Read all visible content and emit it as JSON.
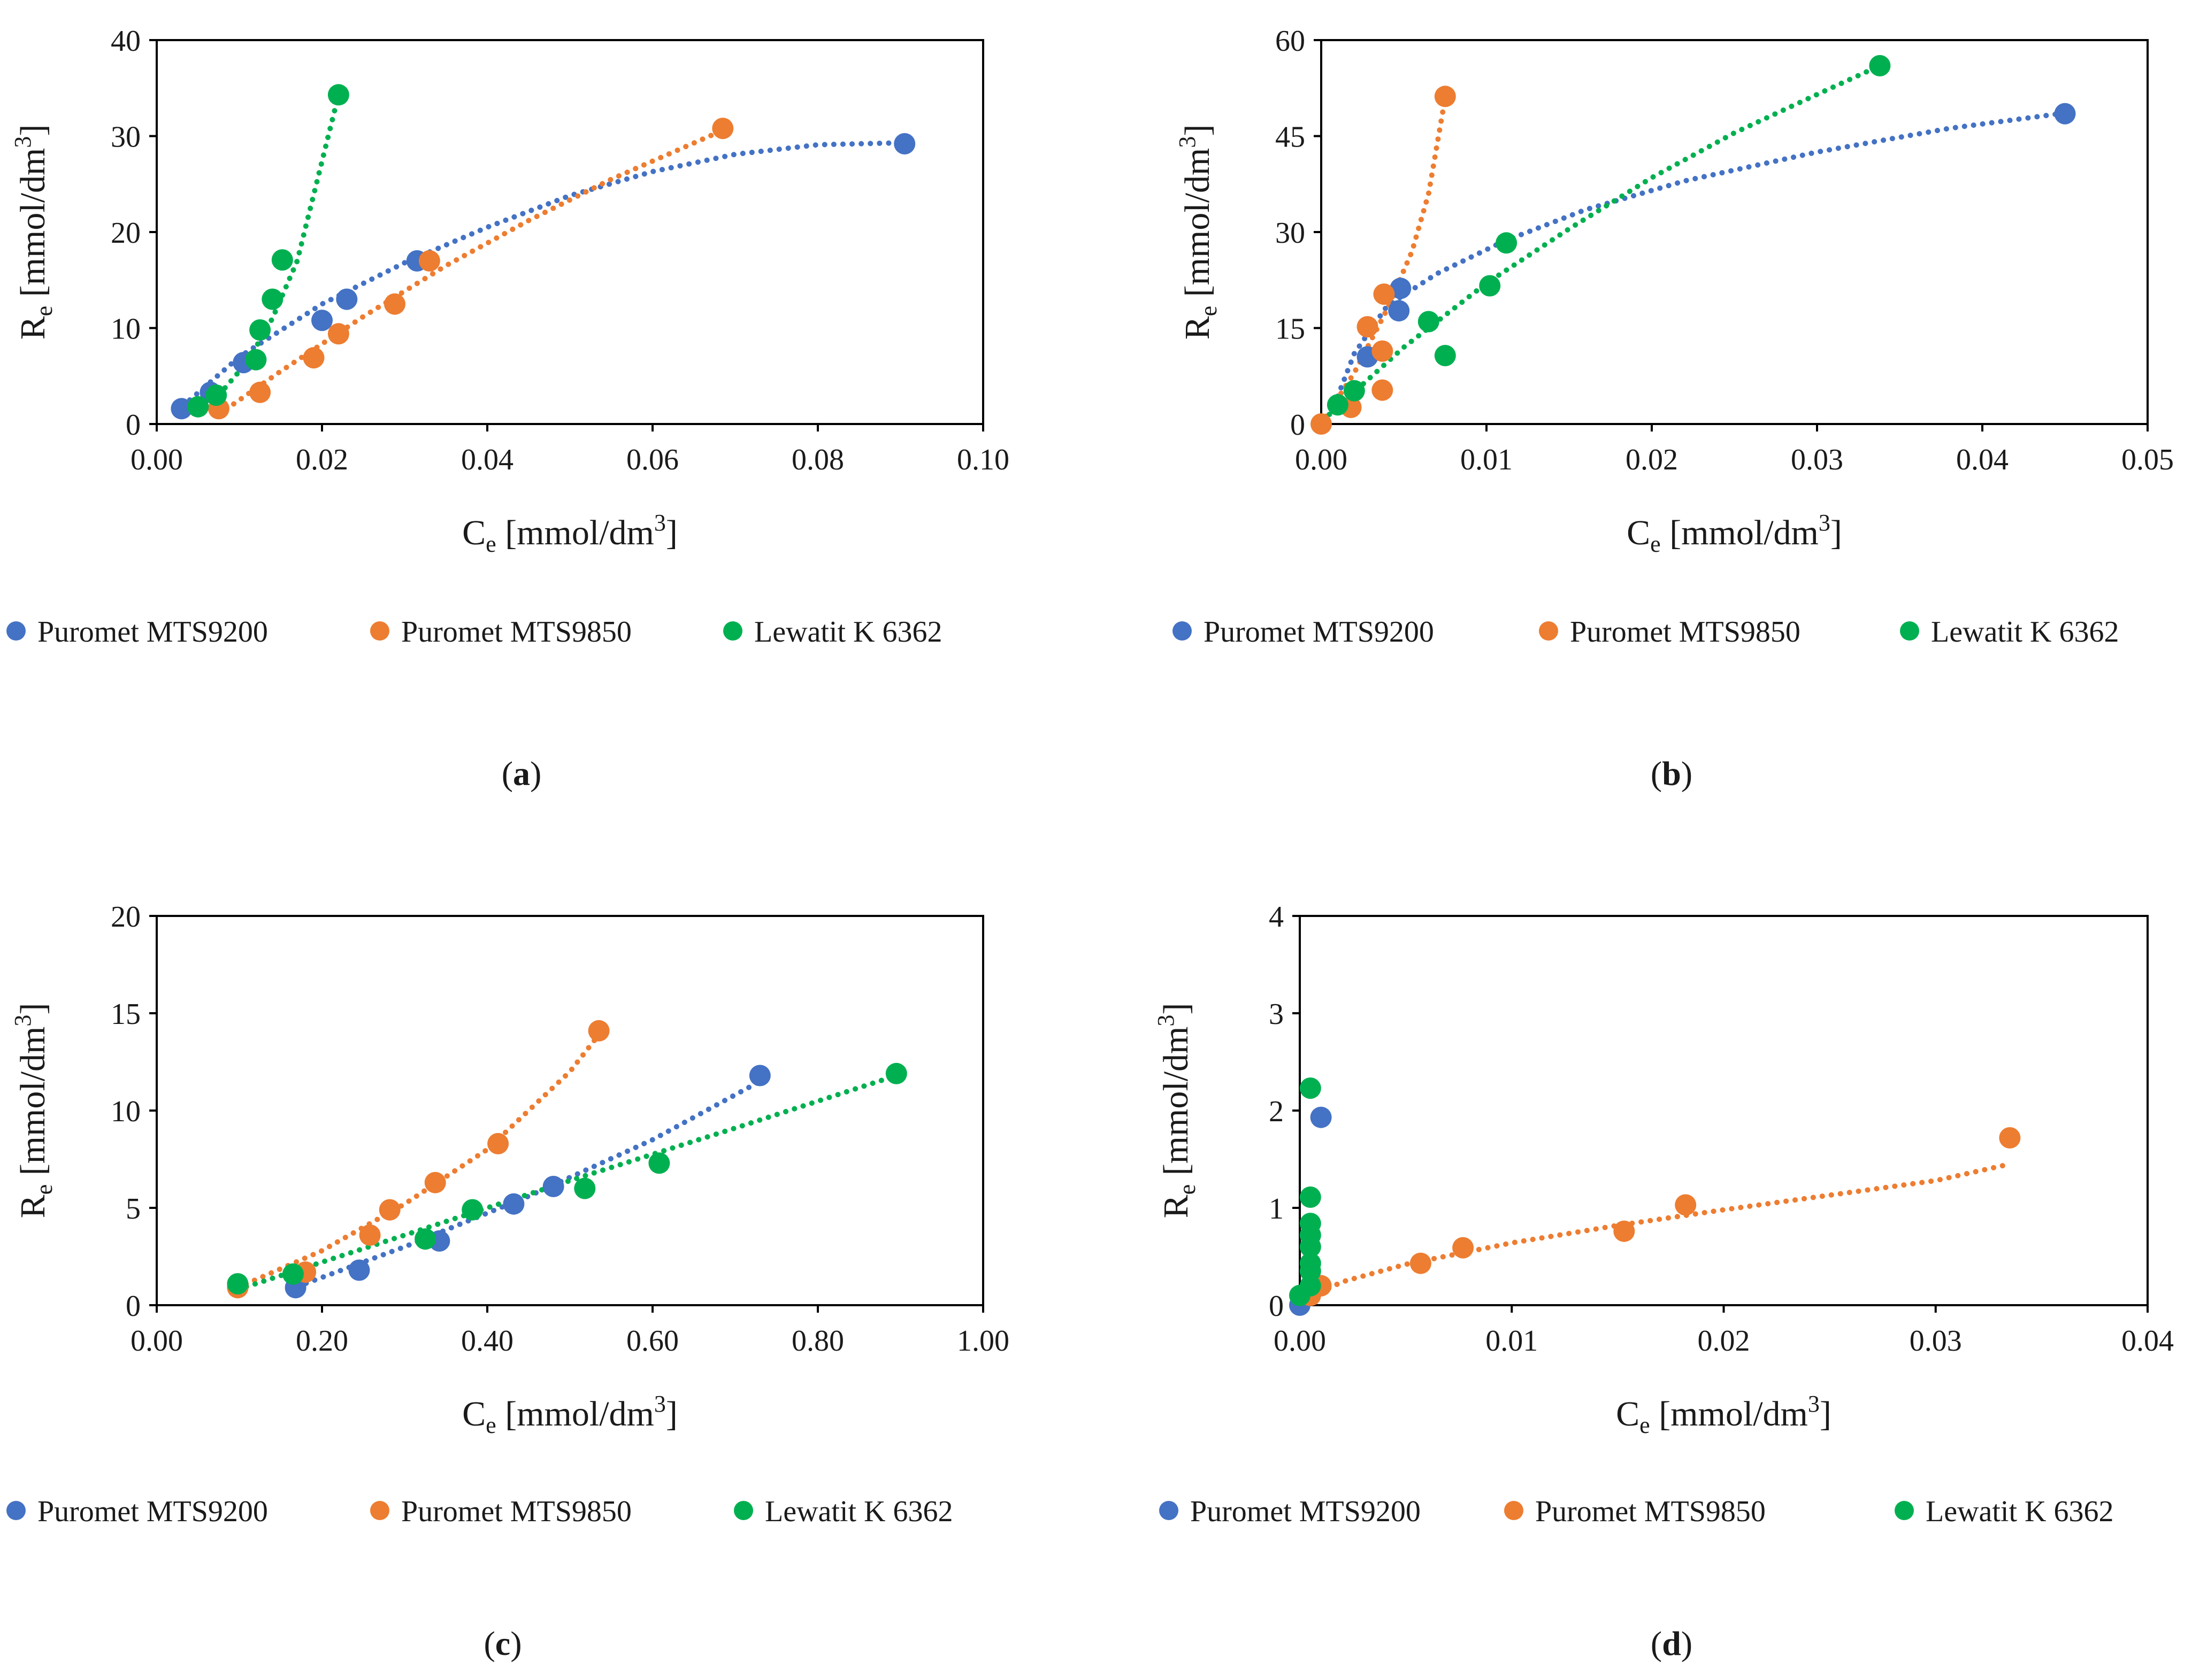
{
  "figure": {
    "colors": {
      "blue": "#4472C4",
      "orange": "#ED7D31",
      "green": "#00B050"
    },
    "ylabel_main": "R",
    "ylabel_sub": "e",
    "ylabel_unit": " [mmol/dm",
    "ylabel_sup": "3",
    "ylabel_close": "]",
    "xlabel_main": "C",
    "xlabel_sub": "e",
    "xlabel_unit": " [mmol/dm",
    "xlabel_sup": "3",
    "xlabel_close": "]"
  },
  "chart_data": [
    {
      "type": "scatter",
      "panel_label": "a",
      "xlabel": "Ce [mmol/dm3]",
      "ylabel": "Re [mmol/dm3]",
      "xlim": [
        0,
        0.1
      ],
      "ylim": [
        0,
        40
      ],
      "xticks": [
        "0.00",
        "0.02",
        "0.04",
        "0.06",
        "0.08",
        "0.10"
      ],
      "yticks": [
        "0",
        "10",
        "20",
        "30",
        "40"
      ],
      "grid": false,
      "legend": "bottom",
      "series": [
        {
          "name": "Puromet MTS9200",
          "color": "blue",
          "x": [
            0.003,
            0.0065,
            0.0105,
            0.02,
            0.023,
            0.0315,
            0.0905
          ],
          "y": [
            1.6,
            3.3,
            6.4,
            10.8,
            13.0,
            17.0,
            29.2
          ],
          "trend": {
            "x": [
              0.004,
              0.01,
              0.02,
              0.03,
              0.04,
              0.05,
              0.06,
              0.07,
              0.08,
              0.09
            ],
            "y": [
              2.5,
              7.0,
              12.5,
              16.8,
              20.5,
              23.8,
              26.3,
              28.1,
              29.1,
              29.3
            ]
          }
        },
        {
          "name": "Puromet MTS9850",
          "color": "orange",
          "x": [
            0.0075,
            0.0125,
            0.019,
            0.022,
            0.0288,
            0.033,
            0.0685
          ],
          "y": [
            1.6,
            3.3,
            6.9,
            9.4,
            12.5,
            17.0,
            30.8
          ],
          "trend": {
            "x": [
              0.0075,
              0.015,
              0.025,
              0.035,
              0.045,
              0.055,
              0.0685
            ],
            "y": [
              1.0,
              5.5,
              11.2,
              16.5,
              21.2,
              25.5,
              30.6
            ]
          }
        },
        {
          "name": "Lewatit K 6362",
          "color": "green",
          "x": [
            0.005,
            0.0072,
            0.012,
            0.0125,
            0.014,
            0.0152,
            0.022
          ],
          "y": [
            1.8,
            3.0,
            6.7,
            9.8,
            13.0,
            17.1,
            34.3
          ],
          "trend": {
            "x": [
              0.005,
              0.008,
              0.011,
              0.014,
              0.017,
              0.022
            ],
            "y": [
              1.2,
              3.5,
              6.5,
              11.0,
              17.0,
              34.3
            ]
          }
        }
      ]
    },
    {
      "type": "scatter",
      "panel_label": "b",
      "xlabel": "Ce [mmol/dm3]",
      "ylabel": "Re [mmol/dm3]",
      "xlim": [
        0,
        0.05
      ],
      "ylim": [
        0,
        60
      ],
      "xticks": [
        "0.00",
        "0.01",
        "0.02",
        "0.03",
        "0.04",
        "0.05"
      ],
      "yticks": [
        "0",
        "15",
        "30",
        "45",
        "60"
      ],
      "grid": false,
      "legend": "bottom",
      "series": [
        {
          "name": "Puromet MTS9200",
          "color": "blue",
          "x": [
            0.0028,
            0.0047,
            0.0048,
            0.045
          ],
          "y": [
            10.5,
            17.7,
            21.2,
            48.5
          ],
          "trend": {
            "x": [
              0.0008,
              0.002,
              0.004,
              0.007,
              0.011,
              0.016,
              0.022,
              0.03,
              0.038,
              0.045
            ],
            "y": [
              3.0,
              11.0,
              18.5,
              23.5,
              28.5,
              33.5,
              38.0,
              42.5,
              46.2,
              48.6
            ]
          }
        },
        {
          "name": "Puromet MTS9850",
          "color": "orange",
          "x": [
            0.0,
            0.0018,
            0.0028,
            0.0037,
            0.0037,
            0.0038,
            0.0075
          ],
          "y": [
            0.0,
            2.6,
            15.2,
            5.3,
            11.4,
            20.3,
            51.2
          ],
          "trend": {
            "x": [
              0.0,
              0.002,
              0.004,
              0.0055,
              0.0065,
              0.0075
            ],
            "y": [
              0.0,
              8.0,
              18.0,
              27.0,
              36.0,
              51.0
            ]
          }
        },
        {
          "name": "Lewatit K 6362",
          "color": "green",
          "x": [
            0.001,
            0.002,
            0.0065,
            0.0075,
            0.0102,
            0.0112,
            0.0338
          ],
          "y": [
            3.0,
            5.2,
            16.0,
            10.7,
            21.6,
            28.3,
            56.0
          ],
          "trend": {
            "x": [
              0.0005,
              0.005,
              0.01,
              0.015,
              0.02,
              0.025,
              0.03,
              0.0338
            ],
            "y": [
              1.5,
              12.0,
              22.0,
              30.5,
              38.5,
              45.5,
              51.5,
              56.0
            ]
          }
        }
      ]
    },
    {
      "type": "scatter",
      "panel_label": "c",
      "xlabel": "Ce [mmol/dm3]",
      "ylabel": "Re [mmol/dm3]",
      "xlim": [
        0,
        1.0
      ],
      "ylim": [
        0,
        20
      ],
      "xticks": [
        "0.00",
        "0.20",
        "0.40",
        "0.60",
        "0.80",
        "1.00"
      ],
      "yticks": [
        "0",
        "5",
        "10",
        "15",
        "20"
      ],
      "grid": false,
      "legend": "bottom",
      "series": [
        {
          "name": "Puromet MTS9200",
          "color": "blue",
          "x": [
            0.168,
            0.245,
            0.342,
            0.432,
            0.48,
            0.73
          ],
          "y": [
            0.9,
            1.8,
            3.3,
            5.2,
            6.1,
            11.8
          ],
          "trend": {
            "x": [
              0.16,
              0.3,
              0.45,
              0.6,
              0.73
            ],
            "y": [
              0.8,
              3.0,
              5.6,
              8.5,
              11.5
            ]
          }
        },
        {
          "name": "Puromet MTS9850",
          "color": "orange",
          "x": [
            0.098,
            0.18,
            0.258,
            0.282,
            0.337,
            0.413,
            0.535
          ],
          "y": [
            0.9,
            1.7,
            3.6,
            4.9,
            6.3,
            8.3,
            14.1
          ],
          "trend": {
            "x": [
              0.098,
              0.2,
              0.3,
              0.4,
              0.5,
              0.535
            ],
            "y": [
              0.9,
              2.8,
              5.2,
              8.0,
              12.0,
              13.9
            ]
          }
        },
        {
          "name": "Lewatit K 6362",
          "color": "green",
          "x": [
            0.098,
            0.165,
            0.325,
            0.382,
            0.518,
            0.608,
            0.895
          ],
          "y": [
            1.1,
            1.6,
            3.4,
            4.9,
            6.0,
            7.3,
            11.9
          ],
          "trend": {
            "x": [
              0.098,
              0.3,
              0.5,
              0.7,
              0.895
            ],
            "y": [
              0.8,
              3.6,
              6.4,
              9.1,
              11.8
            ]
          }
        }
      ]
    },
    {
      "type": "scatter",
      "panel_label": "d",
      "xlabel": "Ce [mmol/dm3]",
      "ylabel": "Re [mmol/dm3]",
      "xlim": [
        0,
        0.04
      ],
      "ylim": [
        0,
        4
      ],
      "xticks": [
        "0.00",
        "0.01",
        "0.02",
        "0.03",
        "0.04"
      ],
      "yticks": [
        "0",
        "1",
        "2",
        "3",
        "4"
      ],
      "grid": false,
      "legend": "bottom",
      "series": [
        {
          "name": "Puromet MTS9200",
          "color": "blue",
          "x": [
            0.0,
            0.001
          ],
          "y": [
            0.0,
            1.93
          ]
        },
        {
          "name": "Puromet MTS9850",
          "color": "orange",
          "x": [
            0.0005,
            0.001,
            0.0057,
            0.0077,
            0.0153,
            0.0182,
            0.0335
          ],
          "y": [
            0.1,
            0.2,
            0.43,
            0.59,
            0.76,
            1.03,
            1.72
          ],
          "trend": {
            "x": [
              0.0002,
              0.002,
              0.005,
              0.01,
              0.015,
              0.02,
              0.025,
              0.03,
              0.0335
            ],
            "y": [
              0.05,
              0.24,
              0.42,
              0.64,
              0.82,
              0.98,
              1.13,
              1.28,
              1.45
            ]
          }
        },
        {
          "name": "Lewatit K 6362",
          "color": "green",
          "x": [
            0.0,
            0.0005,
            0.0005,
            0.0005,
            0.0005,
            0.0005,
            0.0005,
            0.0005,
            0.0005
          ],
          "y": [
            0.1,
            0.2,
            0.35,
            0.43,
            0.6,
            0.72,
            0.84,
            1.11,
            2.23
          ]
        }
      ]
    }
  ]
}
